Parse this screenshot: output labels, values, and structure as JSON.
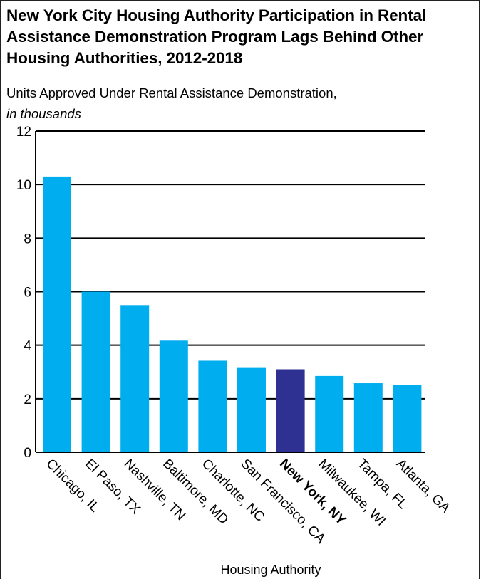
{
  "chart_data": {
    "type": "bar",
    "title": "New York City Housing Authority Participation in Rental Assistance Demonstration Program Lags Behind Other Housing Authorities, 2012-2018",
    "subtitle": "Units Approved Under Rental Assistance Demonstration,",
    "units": "in thousands",
    "xlabel": "Housing Authority",
    "ylabel": "",
    "ylim": [
      0,
      12
    ],
    "yticks": [
      0,
      2,
      4,
      6,
      8,
      10,
      12
    ],
    "grid": true,
    "categories": [
      "Chicago, IL",
      "El Paso, TX",
      "Nashville, TN",
      "Baltimore, MD",
      "Charlotte, NC",
      "San Francisco, CA",
      "New York, NY",
      "Milwaukee, WI",
      "Tampa, FL",
      "Atlanta, GA"
    ],
    "values": [
      10.3,
      6.0,
      5.5,
      4.17,
      3.42,
      3.15,
      3.1,
      2.85,
      2.58,
      2.52
    ],
    "highlight": "New York, NY",
    "colors": {
      "bar": "#00AEEF",
      "highlight": "#2E3192",
      "grid": "#000000"
    }
  }
}
